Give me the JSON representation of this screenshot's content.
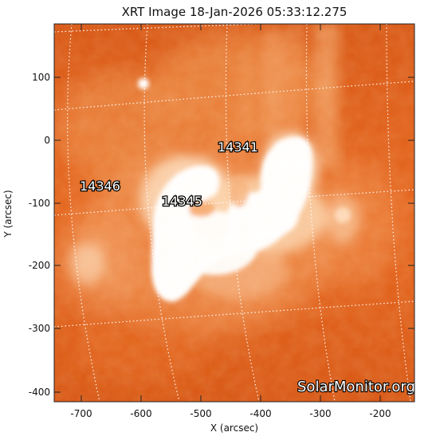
{
  "title": "XRT Image 18-Jan-2026 05:33:12.275",
  "x_axis": {
    "label": "X (arcsec)",
    "ticks": [
      "-700",
      "-600",
      "-500",
      "-400",
      "-300",
      "-200"
    ],
    "range": [
      -755,
      -150
    ]
  },
  "y_axis": {
    "label": "Y (arcsec)",
    "ticks": [
      "100",
      "0",
      "-100",
      "-200",
      "-300",
      "-400"
    ],
    "range": [
      -420,
      180
    ]
  },
  "active_regions": [
    {
      "number": "14341",
      "x": -440,
      "y": -5
    },
    {
      "number": "14346",
      "x": -660,
      "y": -65
    },
    {
      "number": "14345",
      "x": -530,
      "y": -85
    }
  ],
  "watermark": "SolarMonitor.org",
  "colors": {
    "map_base": "#e8661a",
    "bright": "#ffffff",
    "grid": "#ffffff"
  }
}
